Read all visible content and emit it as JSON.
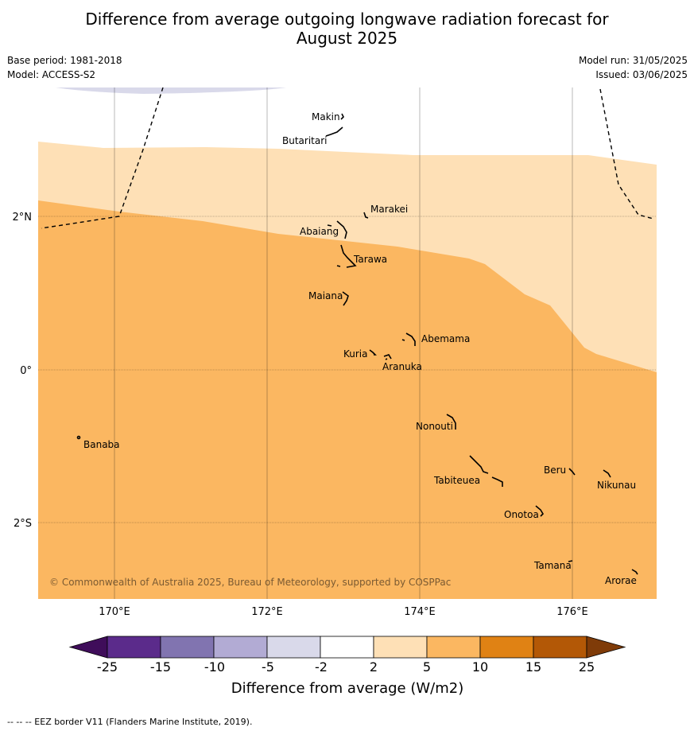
{
  "title_line1": "Difference from average outgoing longwave radiation forecast for",
  "title_line2": "August 2025",
  "meta": {
    "base_period": "Base period: 1981-2018",
    "model": "Model: ACCESS-S2",
    "model_run": "Model run: 31/05/2025",
    "issued": "Issued: 03/06/2025"
  },
  "map": {
    "lat_labels": [
      "2°N",
      "0°",
      "2°S"
    ],
    "lon_labels": [
      "170°E",
      "172°E",
      "174°E",
      "176°E"
    ],
    "places": [
      {
        "name": "Makin"
      },
      {
        "name": "Butaritari"
      },
      {
        "name": "Marakei"
      },
      {
        "name": "Abaiang"
      },
      {
        "name": "Tarawa"
      },
      {
        "name": "Maiana"
      },
      {
        "name": "Abemama"
      },
      {
        "name": "Kuria"
      },
      {
        "name": "Aranuka"
      },
      {
        "name": "Banaba"
      },
      {
        "name": "Nonouti"
      },
      {
        "name": "Beru"
      },
      {
        "name": "Nikunau"
      },
      {
        "name": "Tabiteuea"
      },
      {
        "name": "Onotoa"
      },
      {
        "name": "Tamana"
      },
      {
        "name": "Arorae"
      }
    ],
    "copyright": "© Commonwealth of Australia 2025, Bureau of Meteorology, supported by COSPPac"
  },
  "colorbar": {
    "colors": [
      "#3f0d5a",
      "#5b2b8b",
      "#8174b0",
      "#b2abd4",
      "#d9d9ea",
      "#ffffff",
      "#fee0b6",
      "#fbb761",
      "#e08214",
      "#b35806",
      "#7f3b08"
    ],
    "tick_labels": [
      "-25",
      "-15",
      "-10",
      "-5",
      "-2",
      "2",
      "5",
      "10",
      "15",
      "25"
    ],
    "title": "Difference from average (W/m2)"
  },
  "footer": "--  --  -- EEZ border V11 (Flanders Marine Institute, 2019)."
}
